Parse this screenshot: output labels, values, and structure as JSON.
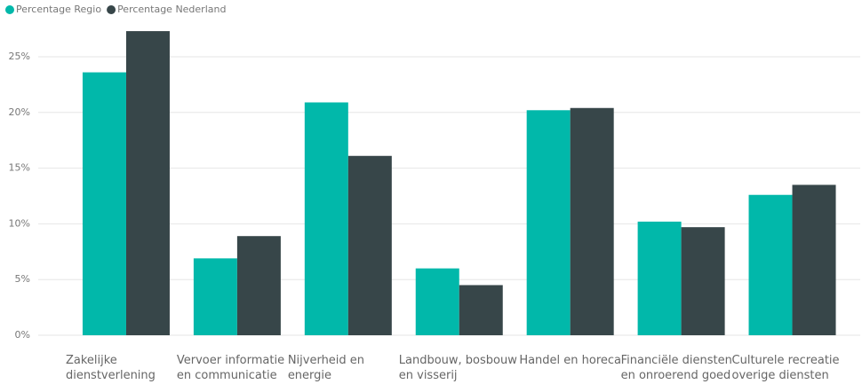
{
  "chart_data": {
    "type": "bar",
    "categories": [
      "Zakelijke dienstverlening",
      "Vervoer informatie en communicatie",
      "Nijverheid en energie",
      "Landbouw, bosbouw en visserij",
      "Handel en horeca",
      "Financiële diensten en onroerend goed",
      "Culturele recreatie overige diensten"
    ],
    "series": [
      {
        "name": "Percentage Regio",
        "color": "#01b8aa",
        "values": [
          23.6,
          6.9,
          20.9,
          6.0,
          20.2,
          10.2,
          12.6
        ]
      },
      {
        "name": "Percentage Nederland",
        "color": "#374649",
        "values": [
          27.3,
          8.9,
          16.1,
          4.5,
          20.4,
          9.7,
          13.5
        ]
      }
    ],
    "ylim": [
      0,
      28
    ],
    "yticks": [
      {
        "value": 0,
        "label": "0%"
      },
      {
        "value": 5,
        "label": "5%"
      },
      {
        "value": 10,
        "label": "10%"
      },
      {
        "value": 15,
        "label": "15%"
      },
      {
        "value": 20,
        "label": "20%"
      },
      {
        "value": 25,
        "label": "25%"
      }
    ],
    "grid": true,
    "legend": "top-left"
  }
}
